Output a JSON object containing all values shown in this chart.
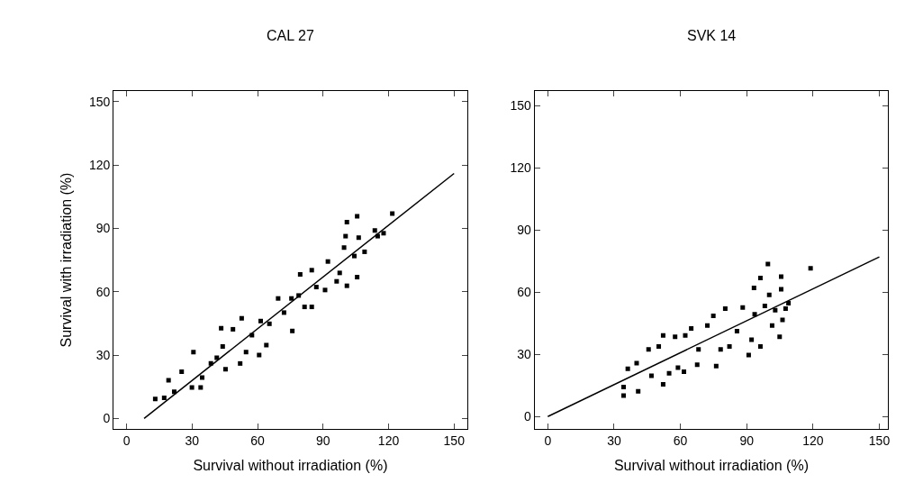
{
  "chart_data": [
    {
      "type": "scatter",
      "title": "CAL 27",
      "xlabel": "Survival without irradiation (%)",
      "ylabel": "Survival with irradiation (%)",
      "xlim": [
        -6,
        156
      ],
      "ylim": [
        -5,
        155
      ],
      "xticks": [
        0,
        30,
        60,
        90,
        120,
        150
      ],
      "yticks": [
        0,
        30,
        60,
        90,
        120,
        150
      ],
      "series": [
        {
          "marker": "square",
          "color": "#000000",
          "x": [
            13.1,
            17.2,
            19.2,
            21.8,
            25.2,
            30.6,
            29.9,
            33.9,
            34.6,
            38.6,
            41.3,
            44,
            43.3,
            48.7,
            52.7,
            45.3,
            52,
            54.7,
            57.4,
            60.7,
            64,
            61.4,
            65.4,
            69.4,
            72.1,
            75.9,
            75.5,
            78.8,
            81.5,
            79.5,
            84.8,
            84.8,
            86.9,
            90.9,
            92.2,
            96.2,
            97.6,
            99.6,
            100.3,
            100.9,
            100.9,
            104.3,
            105.6,
            105.6,
            106.3,
            109,
            113.7,
            115,
            117.7,
            121.7
          ],
          "values": [
            9.2,
            9.7,
            18.1,
            12.6,
            22.1,
            31.4,
            14.6,
            14.6,
            19.3,
            26.1,
            28.7,
            34.1,
            42.7,
            42.2,
            47.4,
            23.3,
            26,
            31.4,
            39.4,
            30,
            34.7,
            46.1,
            44.8,
            56.8,
            50.1,
            41.4,
            56.8,
            58.2,
            52.8,
            68.2,
            52.8,
            70.2,
            62.2,
            60.8,
            74.3,
            64.9,
            68.9,
            80.9,
            86.3,
            93,
            62.8,
            76.9,
            95.7,
            66.9,
            85.6,
            78.9,
            89,
            86.3,
            87.7,
            97
          ]
        },
        {
          "type": "line",
          "color": "#000000",
          "x": [
            8,
            150
          ],
          "values": [
            0,
            116
          ]
        }
      ]
    },
    {
      "type": "scatter",
      "title": "SVK 14",
      "xlabel": "Survival without irradiation (%)",
      "xlim": [
        -6,
        154
      ],
      "ylim": [
        -6,
        157
      ],
      "xticks": [
        0,
        30,
        60,
        90,
        120,
        150
      ],
      "yticks": [
        0,
        30,
        60,
        90,
        120,
        150
      ],
      "series": [
        {
          "marker": "square",
          "color": "#000000",
          "x": [
            34.3,
            34.3,
            36.2,
            40.9,
            40.2,
            45.6,
            46.9,
            50.2,
            52.2,
            52.2,
            54.9,
            57.6,
            58.9,
            61.6,
            62.2,
            64.9,
            67.6,
            68.2,
            72.2,
            74.9,
            76.2,
            78.2,
            80.3,
            82.2,
            85.6,
            88.2,
            90.9,
            92.2,
            93.3,
            93.6,
            96.2,
            96.2,
            98.2,
            99.6,
            100.2,
            101.5,
            102.9,
            104.9,
            105.6,
            105.6,
            106.2,
            107.6,
            108.9,
            118.9
          ],
          "values": [
            10.1,
            14.2,
            23,
            12.1,
            25.7,
            32.4,
            19.6,
            33.8,
            15.5,
            39.1,
            20.9,
            38.5,
            23.6,
            21.6,
            39.1,
            42.5,
            25,
            32.4,
            43.9,
            48.6,
            24.3,
            32.4,
            52,
            33.8,
            41.2,
            52.6,
            29.7,
            37.1,
            62.1,
            49.3,
            66.8,
            33.8,
            53.3,
            73.6,
            58.7,
            43.9,
            51.3,
            38.5,
            67.5,
            61.4,
            46.6,
            52,
            54.7,
            71.5
          ]
        },
        {
          "type": "line",
          "color": "#000000",
          "x": [
            0,
            150
          ],
          "values": [
            0,
            77
          ]
        }
      ]
    }
  ]
}
